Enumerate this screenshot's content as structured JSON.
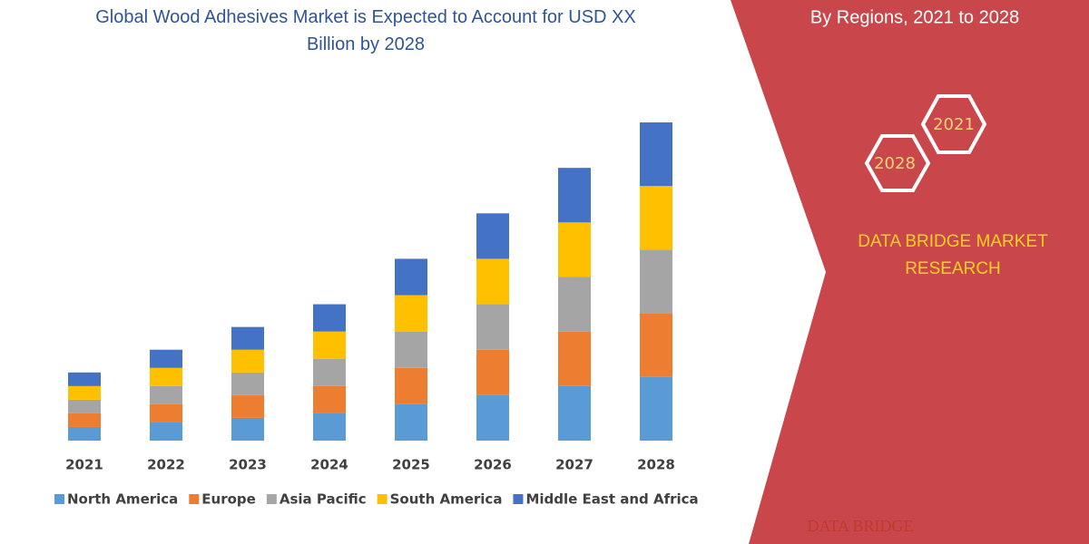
{
  "chart_data": {
    "type": "stacked_bar",
    "title": "Global Wood Adhesives Market is Expected to Account for USD XX Billion by 2028",
    "categories": [
      "2021",
      "2022",
      "2023",
      "2024",
      "2025",
      "2026",
      "2027",
      "2028"
    ],
    "series": [
      {
        "name": "North America",
        "color": "#5b9bd5",
        "values": [
          15,
          20,
          25,
          30,
          40,
          50,
          60,
          70
        ]
      },
      {
        "name": "Europe",
        "color": "#ed7d31",
        "values": [
          15,
          20,
          25,
          30,
          40,
          50,
          60,
          70
        ]
      },
      {
        "name": "Asia Pacific",
        "color": "#a5a5a5",
        "values": [
          15,
          20,
          25,
          30,
          40,
          50,
          60,
          70
        ]
      },
      {
        "name": "South America",
        "color": "#ffc000",
        "values": [
          15,
          20,
          25,
          30,
          40,
          50,
          60,
          70
        ]
      },
      {
        "name": "Middle East and Africa",
        "color": "#4472c4",
        "values": [
          15,
          20,
          25,
          30,
          40,
          50,
          60,
          70
        ]
      }
    ]
  },
  "side_panel": {
    "subtitle": "By Regions, 2021 to 2028",
    "hex_back": "2028",
    "hex_front": "2021",
    "brand": "DATA BRIDGE MARKET RESEARCH",
    "logo": "DATA BRIDGE"
  }
}
